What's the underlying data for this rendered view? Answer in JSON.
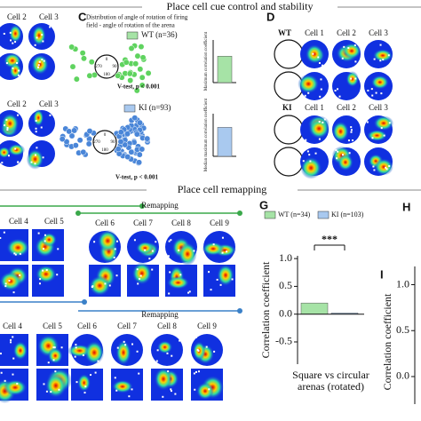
{
  "header": {
    "section1": "Place cell cue control and stability",
    "section2": "Place cell remapping"
  },
  "panel_letters": {
    "c": "C",
    "d": "D",
    "g": "G",
    "h": "H",
    "i": "I"
  },
  "left_cells": {
    "row1": [
      "Cell 2",
      "Cell 3"
    ],
    "row2": [
      "Cell 2",
      "Cell 3"
    ]
  },
  "panel_c": {
    "title": [
      "Distribution of angle of rotation of firing",
      "field - angle of rotation of the arena"
    ],
    "angles": [
      "0",
      "90",
      "180",
      "270"
    ],
    "wt_test": "V-test, p < 0.001",
    "ki_test": "V-test, p < 0.001"
  },
  "panel_d": {
    "wt": "WT",
    "ki": "KI",
    "wt_cells": [
      "Cell 1",
      "Cell 2",
      "Cell 3"
    ],
    "ki_cells": [
      "Cell 1",
      "Cell 2",
      "Cell 3"
    ]
  },
  "remap_top": {
    "left_cells": [
      "Cell 4",
      "Cell 5"
    ],
    "label": "Remapping",
    "cells": [
      "Cell 6",
      "Cell 7",
      "Cell 8",
      "Cell 9"
    ]
  },
  "remap_bottom": {
    "label": "Remapping",
    "cells": [
      "Cell 4",
      "Cell 5",
      "Cell 6",
      "Cell 7",
      "Cell 8",
      "Cell 9"
    ]
  },
  "panel_i": {
    "ylabel": "Correlation coefficient",
    "yticks": [
      {
        "value": 1,
        "label": "1.0"
      },
      0.5,
      {
        "value": 0,
        "label": "0.0"
      }
    ],
    "ylim": [
      -0.3,
      1.15
    ]
  },
  "chart_data": [
    {
      "type": "bar",
      "categories": [
        "WT (n=34)",
        "KI (n=103)"
      ],
      "values": [
        0.2,
        0.02
      ],
      "colors": [
        "#a6e3a6",
        "#a9c9ef"
      ],
      "ylabel": "Correlation coefficient",
      "xlabel": [
        "Square vs circular",
        "arenas (rotated)"
      ],
      "annotation": "***",
      "ylim": [
        -0.9,
        1.05
      ],
      "yticks": [
        {
          "value": 1,
          "label": "1.0"
        },
        0.5,
        {
          "value": 0,
          "label": "0.0"
        },
        -0.5
      ]
    },
    {
      "type": "bar",
      "categories": [
        "WT (n=36)"
      ],
      "values": [
        0.62
      ],
      "colors": [
        "#a6e3a6"
      ],
      "ylabel": "Maximum correlation coefficient",
      "ylim": [
        0,
        1
      ]
    },
    {
      "type": "bar",
      "categories": [
        "KI (n=93)"
      ],
      "values": [
        0.68
      ],
      "colors": [
        "#a9c9ef"
      ],
      "ylabel": "Median maximum correlation coefficient",
      "ylim": [
        0,
        1
      ]
    }
  ]
}
